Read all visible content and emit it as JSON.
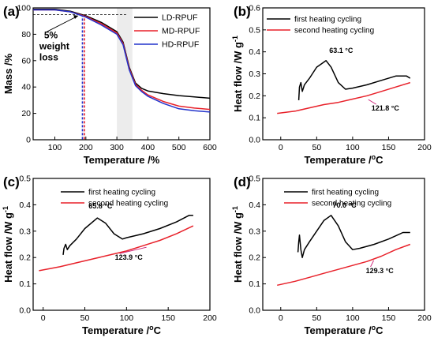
{
  "chart_data": [
    {
      "panel": "(a)",
      "type": "line",
      "xlabel": "Temperature /%",
      "ylabel": "Mass /%",
      "xlim": [
        30,
        600
      ],
      "ylim": [
        0,
        100
      ],
      "xticks": [
        100,
        200,
        300,
        400,
        500,
        600
      ],
      "yticks": [
        0,
        20,
        40,
        60,
        80,
        100
      ],
      "xtick_labels": [
        "100",
        "200",
        "300",
        "400",
        "500",
        "600"
      ],
      "ytick_labels": [
        "0",
        "20",
        "40",
        "60",
        "80",
        "100"
      ],
      "legend_position": "top-right",
      "annotation": "5% weight loss",
      "annotation_lines": [
        "5%",
        "weight",
        "loss"
      ],
      "reference_line_y": 95,
      "reference_line_x": 192,
      "shaded_band": [
        300,
        350
      ],
      "series": [
        {
          "name": "LD-RPUF",
          "color": "#000000",
          "x": [
            30,
            100,
            150,
            200,
            250,
            300,
            320,
            340,
            360,
            380,
            400,
            450,
            500,
            550,
            600
          ],
          "y": [
            99,
            99,
            97.5,
            94,
            89,
            82,
            74,
            55,
            43,
            39,
            37,
            35,
            33.5,
            32.5,
            31.5
          ]
        },
        {
          "name": "MD-RPUF",
          "color": "#e8212a",
          "x": [
            30,
            100,
            150,
            200,
            250,
            300,
            320,
            340,
            360,
            380,
            400,
            450,
            500,
            550,
            600
          ],
          "y": [
            98.5,
            98.5,
            97,
            93.5,
            88,
            81,
            73,
            54,
            42,
            37.5,
            34,
            29,
            25.5,
            24,
            23
          ]
        },
        {
          "name": "HD-RPUF",
          "color": "#2233cc",
          "x": [
            30,
            100,
            150,
            200,
            250,
            300,
            320,
            340,
            360,
            380,
            400,
            450,
            500,
            550,
            600
          ],
          "y": [
            98.5,
            98.5,
            97,
            93,
            87,
            80,
            72,
            53,
            41,
            36.5,
            33,
            27.5,
            23.5,
            22,
            21
          ]
        }
      ]
    },
    {
      "panel": "(b)",
      "type": "line",
      "xlabel": "Temperature /",
      "xlabel_sup": "o",
      "xlabel_end": "C",
      "ylabel": "Heat flow /W g",
      "ylabel_sup": "-1",
      "xlim": [
        -25,
        200
      ],
      "ylim": [
        0.0,
        0.6
      ],
      "xticks": [
        0,
        50,
        100,
        150,
        200
      ],
      "yticks": [
        0.0,
        0.1,
        0.2,
        0.3,
        0.4,
        0.5,
        0.6
      ],
      "xtick_labels": [
        "0",
        "50",
        "100",
        "150",
        "200"
      ],
      "ytick_labels": [
        "0.0",
        "0.1",
        "0.2",
        "0.3",
        "0.4",
        "0.5",
        "0.6"
      ],
      "legend_position": "top-right",
      "annotations": [
        {
          "text": "63.1 °C",
          "x": 63.1,
          "y": 0.36
        },
        {
          "text": "121.8 °C",
          "x": 121.8,
          "y": 0.19
        }
      ],
      "series": [
        {
          "name": "first heating cycling",
          "color": "#000000",
          "x": [
            25,
            26,
            28,
            30,
            33,
            40,
            50,
            63,
            70,
            80,
            90,
            100,
            120,
            140,
            160,
            175,
            180
          ],
          "y": [
            0.18,
            0.24,
            0.26,
            0.22,
            0.25,
            0.28,
            0.33,
            0.36,
            0.33,
            0.26,
            0.23,
            0.235,
            0.25,
            0.27,
            0.29,
            0.29,
            0.28
          ]
        },
        {
          "name": "second heating cycling",
          "color": "#e8212a",
          "x": [
            -5,
            20,
            40,
            60,
            80,
            100,
            120,
            140,
            160,
            180
          ],
          "y": [
            0.12,
            0.13,
            0.145,
            0.16,
            0.17,
            0.185,
            0.2,
            0.22,
            0.24,
            0.26
          ]
        }
      ]
    },
    {
      "panel": "(c)",
      "type": "line",
      "xlabel": "Temperature /",
      "xlabel_sup": "o",
      "xlabel_end": "C",
      "ylabel": "Heat flow /W g",
      "ylabel_sup": "-1",
      "xlim": [
        -12,
        200
      ],
      "ylim": [
        0.0,
        0.5
      ],
      "xticks": [
        0,
        50,
        100,
        150,
        200
      ],
      "yticks": [
        0.0,
        0.1,
        0.2,
        0.3,
        0.4,
        0.5
      ],
      "xtick_labels": [
        "0",
        "50",
        "100",
        "150",
        "200"
      ],
      "ytick_labels": [
        "0.0",
        "0.1",
        "0.2",
        "0.3",
        "0.4",
        "0.5"
      ],
      "legend_position": "top-right",
      "annotations": [
        {
          "text": "65.8 °C",
          "x": 65.8,
          "y": 0.35
        },
        {
          "text": "123.9 °C",
          "x": 123.9,
          "y": 0.245
        }
      ],
      "series": [
        {
          "name": "first heating cycling",
          "color": "#000000",
          "x": [
            24,
            25,
            27,
            29,
            32,
            40,
            50,
            65,
            75,
            85,
            95,
            100,
            120,
            140,
            160,
            175,
            180
          ],
          "y": [
            0.21,
            0.235,
            0.25,
            0.23,
            0.245,
            0.27,
            0.31,
            0.35,
            0.33,
            0.29,
            0.27,
            0.275,
            0.29,
            0.31,
            0.335,
            0.36,
            0.36
          ]
        },
        {
          "name": "second heating cycling",
          "color": "#e8212a",
          "x": [
            -5,
            20,
            40,
            60,
            80,
            100,
            120,
            140,
            160,
            180
          ],
          "y": [
            0.15,
            0.165,
            0.18,
            0.195,
            0.21,
            0.225,
            0.245,
            0.265,
            0.29,
            0.32
          ]
        }
      ]
    },
    {
      "panel": "(d)",
      "type": "line",
      "xlabel": "Temperature /",
      "xlabel_sup": "o",
      "xlabel_end": "C",
      "ylabel": "Heat flow /W g",
      "ylabel_sup": "-1",
      "xlim": [
        -25,
        200
      ],
      "ylim": [
        0.0,
        0.5
      ],
      "xticks": [
        0,
        50,
        100,
        150,
        200
      ],
      "yticks": [
        0.0,
        0.1,
        0.2,
        0.3,
        0.4,
        0.5
      ],
      "xtick_labels": [
        "0",
        "50",
        "100",
        "150",
        "200"
      ],
      "ytick_labels": [
        "0.0",
        "0.1",
        "0.2",
        "0.3",
        "0.4",
        "0.5"
      ],
      "legend_position": "top-right",
      "annotations": [
        {
          "text": "70.0 °C",
          "x": 70.0,
          "y": 0.36
        },
        {
          "text": "129.3 °C",
          "x": 129.3,
          "y": 0.195
        }
      ],
      "series": [
        {
          "name": "first heating cycling",
          "color": "#000000",
          "x": [
            24,
            25,
            26,
            28,
            30,
            33,
            40,
            50,
            60,
            70,
            80,
            90,
            100,
            110,
            130,
            150,
            170,
            180
          ],
          "y": [
            0.22,
            0.26,
            0.285,
            0.23,
            0.2,
            0.23,
            0.26,
            0.3,
            0.34,
            0.36,
            0.32,
            0.26,
            0.23,
            0.235,
            0.25,
            0.27,
            0.295,
            0.295
          ]
        },
        {
          "name": "second heating cycling",
          "color": "#e8212a",
          "x": [
            -5,
            20,
            40,
            60,
            80,
            100,
            120,
            140,
            160,
            180
          ],
          "y": [
            0.095,
            0.11,
            0.125,
            0.14,
            0.155,
            0.17,
            0.185,
            0.205,
            0.23,
            0.25
          ]
        }
      ]
    }
  ]
}
